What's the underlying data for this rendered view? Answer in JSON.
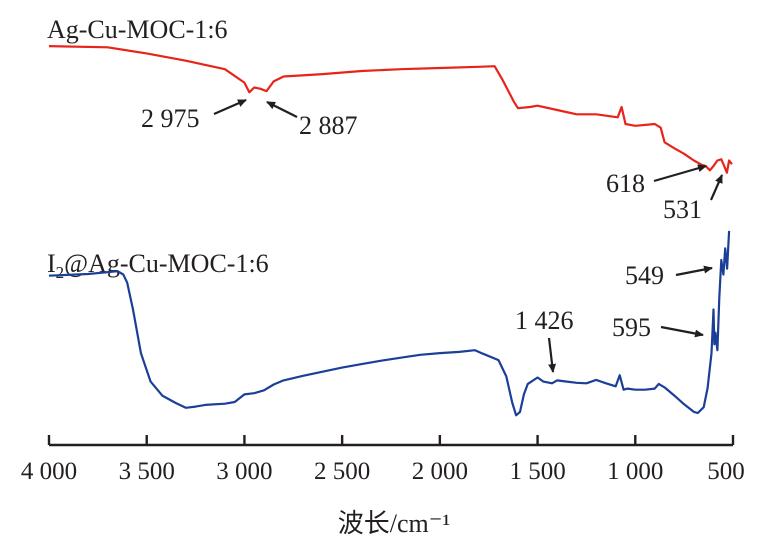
{
  "chart_data": {
    "type": "line",
    "title": "",
    "xlabel": "波长/cm⁻¹",
    "ylabel": "",
    "xlim": [
      4000,
      500
    ],
    "x_reversed": true,
    "grid": false,
    "x_ticks": [
      4000,
      3500,
      3000,
      2500,
      2000,
      1500,
      1000,
      500
    ],
    "x_tick_labels": [
      "4 000",
      "3 500",
      "3 000",
      "2 500",
      "2 000",
      "1 500",
      "1 000",
      "500"
    ],
    "series": [
      {
        "name": "Ag-Cu-MOC-1:6",
        "color": "#e8241a",
        "y_offset": 0,
        "points": [
          [
            4000,
            100
          ],
          [
            3700,
            99.8
          ],
          [
            3500,
            98.8
          ],
          [
            3300,
            97.6
          ],
          [
            3100,
            96.2
          ],
          [
            3000,
            94
          ],
          [
            2975,
            92.4
          ],
          [
            2950,
            93.2
          ],
          [
            2920,
            93
          ],
          [
            2887,
            92.6
          ],
          [
            2850,
            94.2
          ],
          [
            2800,
            95
          ],
          [
            2600,
            95.4
          ],
          [
            2400,
            95.9
          ],
          [
            2200,
            96.2
          ],
          [
            2000,
            96.4
          ],
          [
            1800,
            96.6
          ],
          [
            1720,
            96.7
          ],
          [
            1680,
            94.5
          ],
          [
            1620,
            90.8
          ],
          [
            1600,
            89.8
          ],
          [
            1540,
            90
          ],
          [
            1500,
            90.2
          ],
          [
            1400,
            89.5
          ],
          [
            1300,
            88.8
          ],
          [
            1200,
            88.8
          ],
          [
            1090,
            88.3
          ],
          [
            1070,
            90
          ],
          [
            1050,
            87.2
          ],
          [
            1000,
            86.9
          ],
          [
            900,
            87.2
          ],
          [
            870,
            86.6
          ],
          [
            850,
            84.2
          ],
          [
            800,
            83.2
          ],
          [
            750,
            82.3
          ],
          [
            700,
            81.2
          ],
          [
            660,
            80.5
          ],
          [
            640,
            80.3
          ],
          [
            618,
            79.6
          ],
          [
            600,
            80.3
          ],
          [
            580,
            81.2
          ],
          [
            560,
            81.4
          ],
          [
            545,
            80.3
          ],
          [
            531,
            79.2
          ],
          [
            520,
            81.2
          ],
          [
            505,
            80.6
          ]
        ]
      },
      {
        "name": "I₂@Ag-Cu-MOC-1:6",
        "color": "#1b3f99",
        "y_offset": 0,
        "points": [
          [
            4000,
            93.8
          ],
          [
            3800,
            94.1
          ],
          [
            3700,
            94.4
          ],
          [
            3650,
            94.6
          ],
          [
            3620,
            94
          ],
          [
            3600,
            92.6
          ],
          [
            3570,
            88
          ],
          [
            3530,
            80.5
          ],
          [
            3480,
            75.6
          ],
          [
            3420,
            73.2
          ],
          [
            3350,
            71.9
          ],
          [
            3300,
            71.1
          ],
          [
            3250,
            71.3
          ],
          [
            3200,
            71.6
          ],
          [
            3100,
            71.8
          ],
          [
            3050,
            72.1
          ],
          [
            3000,
            73.4
          ],
          [
            2950,
            73.6
          ],
          [
            2900,
            74.1
          ],
          [
            2850,
            75.1
          ],
          [
            2800,
            75.8
          ],
          [
            2700,
            76.6
          ],
          [
            2600,
            77.3
          ],
          [
            2500,
            78
          ],
          [
            2400,
            78.6
          ],
          [
            2300,
            79.2
          ],
          [
            2200,
            79.7
          ],
          [
            2100,
            80.2
          ],
          [
            2000,
            80.5
          ],
          [
            1900,
            80.7
          ],
          [
            1820,
            81
          ],
          [
            1780,
            80.4
          ],
          [
            1700,
            79.3
          ],
          [
            1660,
            76.5
          ],
          [
            1630,
            72
          ],
          [
            1610,
            69.8
          ],
          [
            1590,
            70.4
          ],
          [
            1570,
            73.4
          ],
          [
            1550,
            75.2
          ],
          [
            1500,
            76.3
          ],
          [
            1470,
            75.6
          ],
          [
            1426,
            75.3
          ],
          [
            1400,
            75.8
          ],
          [
            1350,
            75.6
          ],
          [
            1300,
            75.4
          ],
          [
            1250,
            75.3
          ],
          [
            1200,
            75.9
          ],
          [
            1150,
            75.3
          ],
          [
            1100,
            74.8
          ],
          [
            1080,
            76.7
          ],
          [
            1060,
            74.2
          ],
          [
            1040,
            74.4
          ],
          [
            1000,
            74.2
          ],
          [
            950,
            74.2
          ],
          [
            900,
            74.4
          ],
          [
            880,
            75.2
          ],
          [
            850,
            74.6
          ],
          [
            800,
            73.2
          ],
          [
            750,
            71.7
          ],
          [
            700,
            70.4
          ],
          [
            680,
            70.2
          ],
          [
            650,
            71.2
          ],
          [
            630,
            74.5
          ],
          [
            610,
            80.5
          ],
          [
            600,
            88
          ],
          [
            595,
            82
          ],
          [
            590,
            84
          ],
          [
            580,
            81
          ],
          [
            570,
            90
          ],
          [
            560,
            96.5
          ],
          [
            549,
            94
          ],
          [
            540,
            98.5
          ],
          [
            530,
            95
          ],
          [
            520,
            101.5
          ]
        ]
      }
    ],
    "annotations": [
      {
        "label": "2 975",
        "x": 2975,
        "series": 0
      },
      {
        "label": "2 887",
        "x": 2887,
        "series": 0
      },
      {
        "label": "618",
        "x": 618,
        "series": 0
      },
      {
        "label": "531",
        "x": 531,
        "series": 0
      },
      {
        "label": "1 426",
        "x": 1426,
        "series": 1
      },
      {
        "label": "595",
        "x": 595,
        "series": 1
      },
      {
        "label": "549",
        "x": 549,
        "series": 1
      }
    ]
  }
}
